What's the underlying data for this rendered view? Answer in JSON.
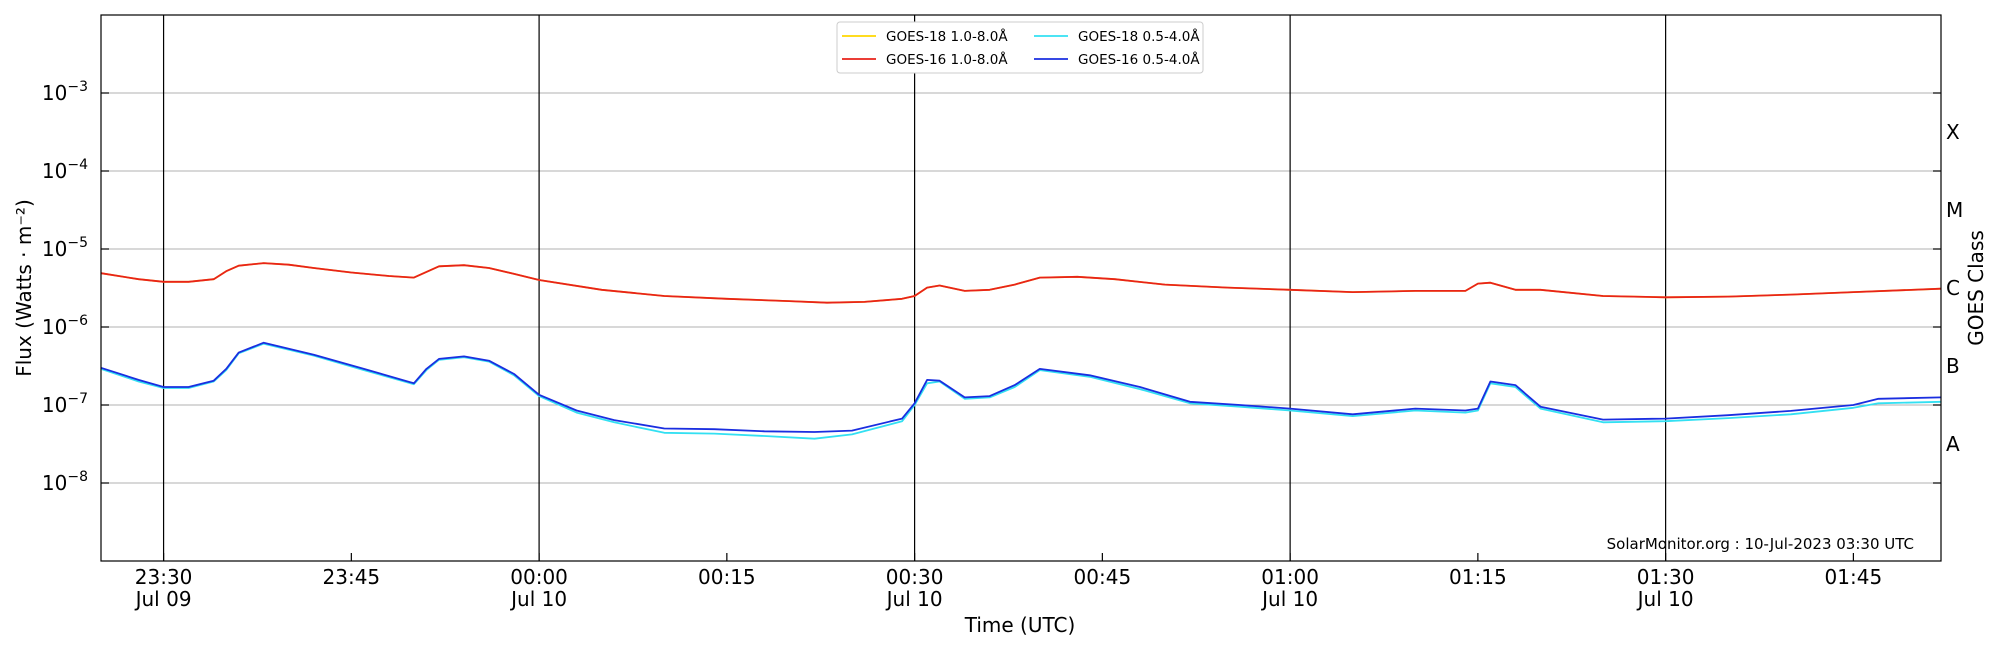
{
  "chart_data": {
    "type": "line",
    "xlabel": "Time (UTC)",
    "ylabel": "Flux (Watts · m⁻²)",
    "right_label": "GOES Class",
    "credit": "SolarMonitor.org : 10-Jul-2023 03:30 UTC",
    "y_scale": "log",
    "ylim": [
      1e-09,
      0.01
    ],
    "xlim": [
      "2023-07-09 23:25",
      "2023-07-10 01:52"
    ],
    "y_ticks": [
      {
        "value": 1e-08,
        "exp": "−8"
      },
      {
        "value": 1e-07,
        "exp": "−7"
      },
      {
        "value": 1e-06,
        "exp": "−6"
      },
      {
        "value": 1e-05,
        "exp": "−5"
      },
      {
        "value": 0.0001,
        "exp": "−4"
      },
      {
        "value": 0.001,
        "exp": "−3"
      }
    ],
    "y_tick_base": "10",
    "x_ticks": [
      {
        "time": "2023-07-09 23:30",
        "label": "23:30",
        "sublabel": "Jul 09",
        "vline": true
      },
      {
        "time": "2023-07-09 23:45",
        "label": "23:45",
        "sublabel": "",
        "vline": false
      },
      {
        "time": "2023-07-10 00:00",
        "label": "00:00",
        "sublabel": "Jul 10",
        "vline": true
      },
      {
        "time": "2023-07-10 00:15",
        "label": "00:15",
        "sublabel": "",
        "vline": false
      },
      {
        "time": "2023-07-10 00:30",
        "label": "00:30",
        "sublabel": "Jul 10",
        "vline": true
      },
      {
        "time": "2023-07-10 00:45",
        "label": "00:45",
        "sublabel": "",
        "vline": false
      },
      {
        "time": "2023-07-10 01:00",
        "label": "01:00",
        "sublabel": "Jul 10",
        "vline": true
      },
      {
        "time": "2023-07-10 01:15",
        "label": "01:15",
        "sublabel": "",
        "vline": false
      },
      {
        "time": "2023-07-10 01:30",
        "label": "01:30",
        "sublabel": "Jul 10",
        "vline": true
      },
      {
        "time": "2023-07-10 01:45",
        "label": "01:45",
        "sublabel": "",
        "vline": false
      }
    ],
    "goes_classes": [
      {
        "label": "A",
        "value": 3.16e-08
      },
      {
        "label": "B",
        "value": 3.16e-07
      },
      {
        "label": "C",
        "value": 3.16e-06
      },
      {
        "label": "M",
        "value": 3.16e-05
      },
      {
        "label": "X",
        "value": 0.000316
      }
    ],
    "legend_position": "top-center",
    "grid": "horizontal",
    "series": [
      {
        "name": "GOES-18 1.0-8.0Å",
        "color": "#ffd700",
        "x": [
          "2023-07-09 23:25",
          "2023-07-09 23:28",
          "2023-07-09 23:30",
          "2023-07-09 23:32",
          "2023-07-09 23:34",
          "2023-07-09 23:35",
          "2023-07-09 23:36",
          "2023-07-09 23:38",
          "2023-07-09 23:40",
          "2023-07-09 23:42",
          "2023-07-09 23:45",
          "2023-07-09 23:48",
          "2023-07-09 23:50",
          "2023-07-09 23:52",
          "2023-07-09 23:54",
          "2023-07-09 23:56",
          "2023-07-09 23:58",
          "2023-07-10 00:00",
          "2023-07-10 00:05",
          "2023-07-10 00:10",
          "2023-07-10 00:15",
          "2023-07-10 00:20",
          "2023-07-10 00:23",
          "2023-07-10 00:26",
          "2023-07-10 00:29",
          "2023-07-10 00:30",
          "2023-07-10 00:31",
          "2023-07-10 00:32",
          "2023-07-10 00:34",
          "2023-07-10 00:36",
          "2023-07-10 00:38",
          "2023-07-10 00:40",
          "2023-07-10 00:43",
          "2023-07-10 00:46",
          "2023-07-10 00:50",
          "2023-07-10 00:55",
          "2023-07-10 01:00",
          "2023-07-10 01:05",
          "2023-07-10 01:10",
          "2023-07-10 01:14",
          "2023-07-10 01:15",
          "2023-07-10 01:16",
          "2023-07-10 01:18",
          "2023-07-10 01:20",
          "2023-07-10 01:25",
          "2023-07-10 01:30",
          "2023-07-10 01:35",
          "2023-07-10 01:40",
          "2023-07-10 01:45",
          "2023-07-10 01:52"
        ],
        "values": [
          4.9e-06,
          4.1e-06,
          3.8e-06,
          3.8e-06,
          4.1e-06,
          5.2e-06,
          6.1e-06,
          6.6e-06,
          6.3e-06,
          5.7e-06,
          5e-06,
          4.5e-06,
          4.3e-06,
          6e-06,
          6.2e-06,
          5.7e-06,
          4.8e-06,
          4e-06,
          3e-06,
          2.5e-06,
          2.3e-06,
          2.15e-06,
          2.05e-06,
          2.1e-06,
          2.3e-06,
          2.5e-06,
          3.2e-06,
          3.4e-06,
          2.9e-06,
          3e-06,
          3.5e-06,
          4.3e-06,
          4.4e-06,
          4.1e-06,
          3.5e-06,
          3.2e-06,
          3e-06,
          2.8e-06,
          2.9e-06,
          2.9e-06,
          3.6e-06,
          3.7e-06,
          3e-06,
          3e-06,
          2.5e-06,
          2.4e-06,
          2.45e-06,
          2.6e-06,
          2.8e-06,
          3.1e-06
        ]
      },
      {
        "name": "GOES-16 1.0-8.0Å",
        "color": "#e8231a",
        "x": [
          "2023-07-09 23:25",
          "2023-07-09 23:28",
          "2023-07-09 23:30",
          "2023-07-09 23:32",
          "2023-07-09 23:34",
          "2023-07-09 23:35",
          "2023-07-09 23:36",
          "2023-07-09 23:38",
          "2023-07-09 23:40",
          "2023-07-09 23:42",
          "2023-07-09 23:45",
          "2023-07-09 23:48",
          "2023-07-09 23:50",
          "2023-07-09 23:52",
          "2023-07-09 23:54",
          "2023-07-09 23:56",
          "2023-07-09 23:58",
          "2023-07-10 00:00",
          "2023-07-10 00:05",
          "2023-07-10 00:10",
          "2023-07-10 00:15",
          "2023-07-10 00:20",
          "2023-07-10 00:23",
          "2023-07-10 00:26",
          "2023-07-10 00:29",
          "2023-07-10 00:30",
          "2023-07-10 00:31",
          "2023-07-10 00:32",
          "2023-07-10 00:34",
          "2023-07-10 00:36",
          "2023-07-10 00:38",
          "2023-07-10 00:40",
          "2023-07-10 00:43",
          "2023-07-10 00:46",
          "2023-07-10 00:50",
          "2023-07-10 00:55",
          "2023-07-10 01:00",
          "2023-07-10 01:05",
          "2023-07-10 01:10",
          "2023-07-10 01:14",
          "2023-07-10 01:15",
          "2023-07-10 01:16",
          "2023-07-10 01:18",
          "2023-07-10 01:20",
          "2023-07-10 01:25",
          "2023-07-10 01:30",
          "2023-07-10 01:35",
          "2023-07-10 01:40",
          "2023-07-10 01:45",
          "2023-07-10 01:52"
        ],
        "values": [
          4.9e-06,
          4.1e-06,
          3.8e-06,
          3.8e-06,
          4.1e-06,
          5.2e-06,
          6.1e-06,
          6.6e-06,
          6.3e-06,
          5.7e-06,
          5e-06,
          4.5e-06,
          4.3e-06,
          6e-06,
          6.2e-06,
          5.7e-06,
          4.8e-06,
          4e-06,
          3e-06,
          2.5e-06,
          2.3e-06,
          2.15e-06,
          2.05e-06,
          2.1e-06,
          2.3e-06,
          2.5e-06,
          3.2e-06,
          3.4e-06,
          2.9e-06,
          3e-06,
          3.5e-06,
          4.3e-06,
          4.4e-06,
          4.1e-06,
          3.5e-06,
          3.2e-06,
          3e-06,
          2.8e-06,
          2.9e-06,
          2.9e-06,
          3.6e-06,
          3.7e-06,
          3e-06,
          3e-06,
          2.5e-06,
          2.4e-06,
          2.45e-06,
          2.6e-06,
          2.8e-06,
          3.1e-06
        ]
      },
      {
        "name": "GOES-18 0.5-4.0Å",
        "color": "#33e0f2",
        "x": [
          "2023-07-09 23:25",
          "2023-07-09 23:28",
          "2023-07-09 23:30",
          "2023-07-09 23:32",
          "2023-07-09 23:34",
          "2023-07-09 23:35",
          "2023-07-09 23:36",
          "2023-07-09 23:38",
          "2023-07-09 23:42",
          "2023-07-09 23:46",
          "2023-07-09 23:50",
          "2023-07-09 23:51",
          "2023-07-09 23:52",
          "2023-07-09 23:54",
          "2023-07-09 23:56",
          "2023-07-09 23:58",
          "2023-07-10 00:00",
          "2023-07-10 00:03",
          "2023-07-10 00:06",
          "2023-07-10 00:10",
          "2023-07-10 00:14",
          "2023-07-10 00:18",
          "2023-07-10 00:22",
          "2023-07-10 00:25",
          "2023-07-10 00:29",
          "2023-07-10 00:30",
          "2023-07-10 00:31",
          "2023-07-10 00:32",
          "2023-07-10 00:34",
          "2023-07-10 00:36",
          "2023-07-10 00:38",
          "2023-07-10 00:40",
          "2023-07-10 00:44",
          "2023-07-10 00:48",
          "2023-07-10 00:52",
          "2023-07-10 00:56",
          "2023-07-10 01:00",
          "2023-07-10 01:05",
          "2023-07-10 01:10",
          "2023-07-10 01:14",
          "2023-07-10 01:15",
          "2023-07-10 01:16",
          "2023-07-10 01:18",
          "2023-07-10 01:20",
          "2023-07-10 01:25",
          "2023-07-10 01:30",
          "2023-07-10 01:35",
          "2023-07-10 01:40",
          "2023-07-10 01:45",
          "2023-07-10 01:47",
          "2023-07-10 01:52"
        ],
        "values": [
          2.9e-07,
          2e-07,
          1.65e-07,
          1.65e-07,
          2e-07,
          2.8e-07,
          4.6e-07,
          6.1e-07,
          4.3e-07,
          2.8e-07,
          1.85e-07,
          2.8e-07,
          3.8e-07,
          4.1e-07,
          3.6e-07,
          2.4e-07,
          1.3e-07,
          8e-08,
          6e-08,
          4.4e-08,
          4.3e-08,
          4e-08,
          3.7e-08,
          4.2e-08,
          6.2e-08,
          1e-07,
          1.9e-07,
          2e-07,
          1.2e-07,
          1.25e-07,
          1.7e-07,
          2.8e-07,
          2.3e-07,
          1.6e-07,
          1.05e-07,
          9.5e-08,
          8.5e-08,
          7.2e-08,
          8.5e-08,
          8e-08,
          8.5e-08,
          1.9e-07,
          1.7e-07,
          9e-08,
          6e-08,
          6.2e-08,
          6.8e-08,
          7.6e-08,
          9.2e-08,
          1.05e-07,
          1.1e-07
        ]
      },
      {
        "name": "GOES-16 0.5-4.0Å",
        "color": "#1a2ee0",
        "x": [
          "2023-07-09 23:25",
          "2023-07-09 23:28",
          "2023-07-09 23:30",
          "2023-07-09 23:32",
          "2023-07-09 23:34",
          "2023-07-09 23:35",
          "2023-07-09 23:36",
          "2023-07-09 23:38",
          "2023-07-09 23:42",
          "2023-07-09 23:46",
          "2023-07-09 23:50",
          "2023-07-09 23:51",
          "2023-07-09 23:52",
          "2023-07-09 23:54",
          "2023-07-09 23:56",
          "2023-07-09 23:58",
          "2023-07-10 00:00",
          "2023-07-10 00:03",
          "2023-07-10 00:06",
          "2023-07-10 00:10",
          "2023-07-10 00:14",
          "2023-07-10 00:18",
          "2023-07-10 00:22",
          "2023-07-10 00:25",
          "2023-07-10 00:29",
          "2023-07-10 00:30",
          "2023-07-10 00:31",
          "2023-07-10 00:32",
          "2023-07-10 00:34",
          "2023-07-10 00:36",
          "2023-07-10 00:38",
          "2023-07-10 00:40",
          "2023-07-10 00:44",
          "2023-07-10 00:48",
          "2023-07-10 00:52",
          "2023-07-10 00:56",
          "2023-07-10 01:00",
          "2023-07-10 01:05",
          "2023-07-10 01:10",
          "2023-07-10 01:14",
          "2023-07-10 01:15",
          "2023-07-10 01:16",
          "2023-07-10 01:18",
          "2023-07-10 01:20",
          "2023-07-10 01:25",
          "2023-07-10 01:30",
          "2023-07-10 01:35",
          "2023-07-10 01:40",
          "2023-07-10 01:45",
          "2023-07-10 01:47",
          "2023-07-10 01:52"
        ],
        "values": [
          3e-07,
          2.1e-07,
          1.7e-07,
          1.7e-07,
          2.05e-07,
          2.9e-07,
          4.7e-07,
          6.3e-07,
          4.4e-07,
          2.9e-07,
          1.9e-07,
          2.9e-07,
          3.9e-07,
          4.2e-07,
          3.7e-07,
          2.5e-07,
          1.35e-07,
          8.5e-08,
          6.4e-08,
          5e-08,
          4.9e-08,
          4.6e-08,
          4.5e-08,
          4.7e-08,
          6.7e-08,
          1.05e-07,
          2.1e-07,
          2.05e-07,
          1.25e-07,
          1.3e-07,
          1.8e-07,
          2.9e-07,
          2.4e-07,
          1.7e-07,
          1.1e-07,
          1e-07,
          9e-08,
          7.6e-08,
          9e-08,
          8.5e-08,
          9e-08,
          2e-07,
          1.8e-07,
          9.5e-08,
          6.5e-08,
          6.7e-08,
          7.4e-08,
          8.4e-08,
          1e-07,
          1.2e-07,
          1.25e-07
        ]
      }
    ]
  }
}
